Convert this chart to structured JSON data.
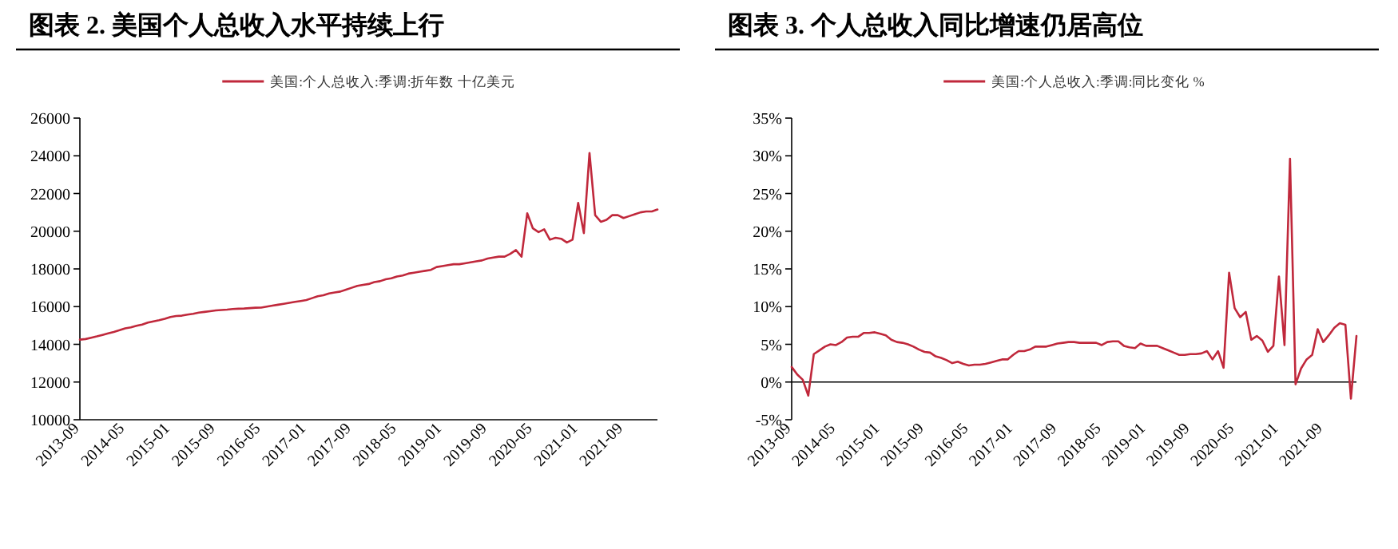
{
  "chart_data": [
    {
      "type": "line",
      "title": "图表 2.   美国个人总收入水平持续上行",
      "legend": "top",
      "categories": [
        "2013-09",
        null,
        null,
        null,
        null,
        null,
        null,
        null,
        "2014-05",
        null,
        null,
        null,
        null,
        null,
        null,
        null,
        "2015-01",
        null,
        null,
        null,
        null,
        null,
        null,
        null,
        "2015-09",
        null,
        null,
        null,
        null,
        null,
        null,
        null,
        "2016-05",
        null,
        null,
        null,
        null,
        null,
        null,
        null,
        "2017-01",
        null,
        null,
        null,
        null,
        null,
        null,
        null,
        "2017-09",
        null,
        null,
        null,
        null,
        null,
        null,
        null,
        "2018-05",
        null,
        null,
        null,
        null,
        null,
        null,
        null,
        "2019-01",
        null,
        null,
        null,
        null,
        null,
        null,
        null,
        "2019-09",
        null,
        null,
        null,
        null,
        null,
        null,
        null,
        "2020-05",
        null,
        null,
        null,
        null,
        null,
        null,
        null,
        "2021-01",
        null,
        null,
        null,
        null,
        null,
        null,
        null,
        "2021-09",
        null,
        null,
        null,
        null,
        null,
        null
      ],
      "ylim": [
        10000,
        26000
      ],
      "yticks": [
        10000,
        12000,
        14000,
        16000,
        18000,
        20000,
        22000,
        24000,
        26000
      ],
      "series": [
        {
          "name": "美国:个人总收入:季调:折年数 十亿美元",
          "color": "#c0283b",
          "values": [
            14250,
            14280,
            14350,
            14420,
            14500,
            14580,
            14660,
            14750,
            14850,
            14900,
            14980,
            15050,
            15150,
            15220,
            15280,
            15350,
            15450,
            15500,
            15520,
            15580,
            15620,
            15680,
            15720,
            15760,
            15800,
            15820,
            15840,
            15870,
            15890,
            15900,
            15920,
            15940,
            15950,
            16000,
            16050,
            16100,
            16150,
            16200,
            16250,
            16300,
            16350,
            16450,
            16550,
            16600,
            16700,
            16750,
            16800,
            16900,
            17000,
            17100,
            17150,
            17200,
            17300,
            17350,
            17450,
            17500,
            17600,
            17650,
            17750,
            17800,
            17850,
            17900,
            17950,
            18100,
            18150,
            18200,
            18250,
            18250,
            18300,
            18350,
            18400,
            18450,
            18550,
            18600,
            18650,
            18650,
            18800,
            19000,
            18650,
            20950,
            20150,
            19950,
            20100,
            19550,
            19650,
            19600,
            19400,
            19550,
            21500,
            19900,
            24150,
            20850,
            20500,
            20600,
            20850,
            20850,
            20700,
            20800,
            20900,
            21000,
            21050,
            21050,
            21150
          ]
        }
      ]
    },
    {
      "type": "line",
      "title": "图表 3.   个人总收入同比增速仍居高位",
      "legend": "top",
      "categories": [
        "2013-09",
        null,
        null,
        null,
        null,
        null,
        null,
        null,
        "2014-05",
        null,
        null,
        null,
        null,
        null,
        null,
        null,
        "2015-01",
        null,
        null,
        null,
        null,
        null,
        null,
        null,
        "2015-09",
        null,
        null,
        null,
        null,
        null,
        null,
        null,
        "2016-05",
        null,
        null,
        null,
        null,
        null,
        null,
        null,
        "2017-01",
        null,
        null,
        null,
        null,
        null,
        null,
        null,
        "2017-09",
        null,
        null,
        null,
        null,
        null,
        null,
        null,
        "2018-05",
        null,
        null,
        null,
        null,
        null,
        null,
        null,
        "2019-01",
        null,
        null,
        null,
        null,
        null,
        null,
        null,
        "2019-09",
        null,
        null,
        null,
        null,
        null,
        null,
        null,
        "2020-05",
        null,
        null,
        null,
        null,
        null,
        null,
        null,
        "2021-01",
        null,
        null,
        null,
        null,
        null,
        null,
        null,
        "2021-09",
        null,
        null,
        null,
        null,
        null,
        null
      ],
      "ylim": [
        -5,
        35
      ],
      "yticks": [
        {
          "value": -5,
          "label": "-5%"
        },
        {
          "value": 0,
          "label": "0%"
        },
        {
          "value": 5,
          "label": "5%"
        },
        {
          "value": 10,
          "label": "10%"
        },
        {
          "value": 15,
          "label": "15%"
        },
        {
          "value": 20,
          "label": "20%"
        },
        {
          "value": 25,
          "label": "25%"
        },
        {
          "value": 30,
          "label": "30%"
        },
        {
          "value": 35,
          "label": "35%"
        }
      ],
      "series": [
        {
          "name": "美国:个人总收入:季调:同比变化 %",
          "color": "#c0283b",
          "values": [
            2.0,
            1.0,
            0.3,
            -1.8,
            3.7,
            4.2,
            4.7,
            5.0,
            4.9,
            5.3,
            5.9,
            6.0,
            6.0,
            6.5,
            6.5,
            6.6,
            6.4,
            6.2,
            5.6,
            5.3,
            5.2,
            5.0,
            4.7,
            4.3,
            4.0,
            3.9,
            3.4,
            3.2,
            2.9,
            2.5,
            2.7,
            2.4,
            2.2,
            2.3,
            2.3,
            2.4,
            2.6,
            2.8,
            3.0,
            3.0,
            3.6,
            4.1,
            4.1,
            4.3,
            4.7,
            4.7,
            4.7,
            4.9,
            5.1,
            5.2,
            5.3,
            5.3,
            5.2,
            5.2,
            5.2,
            5.2,
            4.9,
            5.3,
            5.4,
            5.4,
            4.8,
            4.6,
            4.5,
            5.1,
            4.8,
            4.8,
            4.8,
            4.5,
            4.2,
            3.9,
            3.6,
            3.6,
            3.7,
            3.7,
            3.8,
            4.1,
            3.0,
            4.1,
            1.9,
            14.5,
            9.8,
            8.6,
            9.3,
            5.6,
            6.1,
            5.5,
            4.0,
            4.8,
            14.0,
            4.9,
            29.6,
            -0.3,
            1.8,
            3.0,
            3.6,
            7.0,
            5.3,
            6.2,
            7.2,
            7.8,
            7.6,
            -2.2,
            6.1
          ]
        }
      ]
    }
  ]
}
